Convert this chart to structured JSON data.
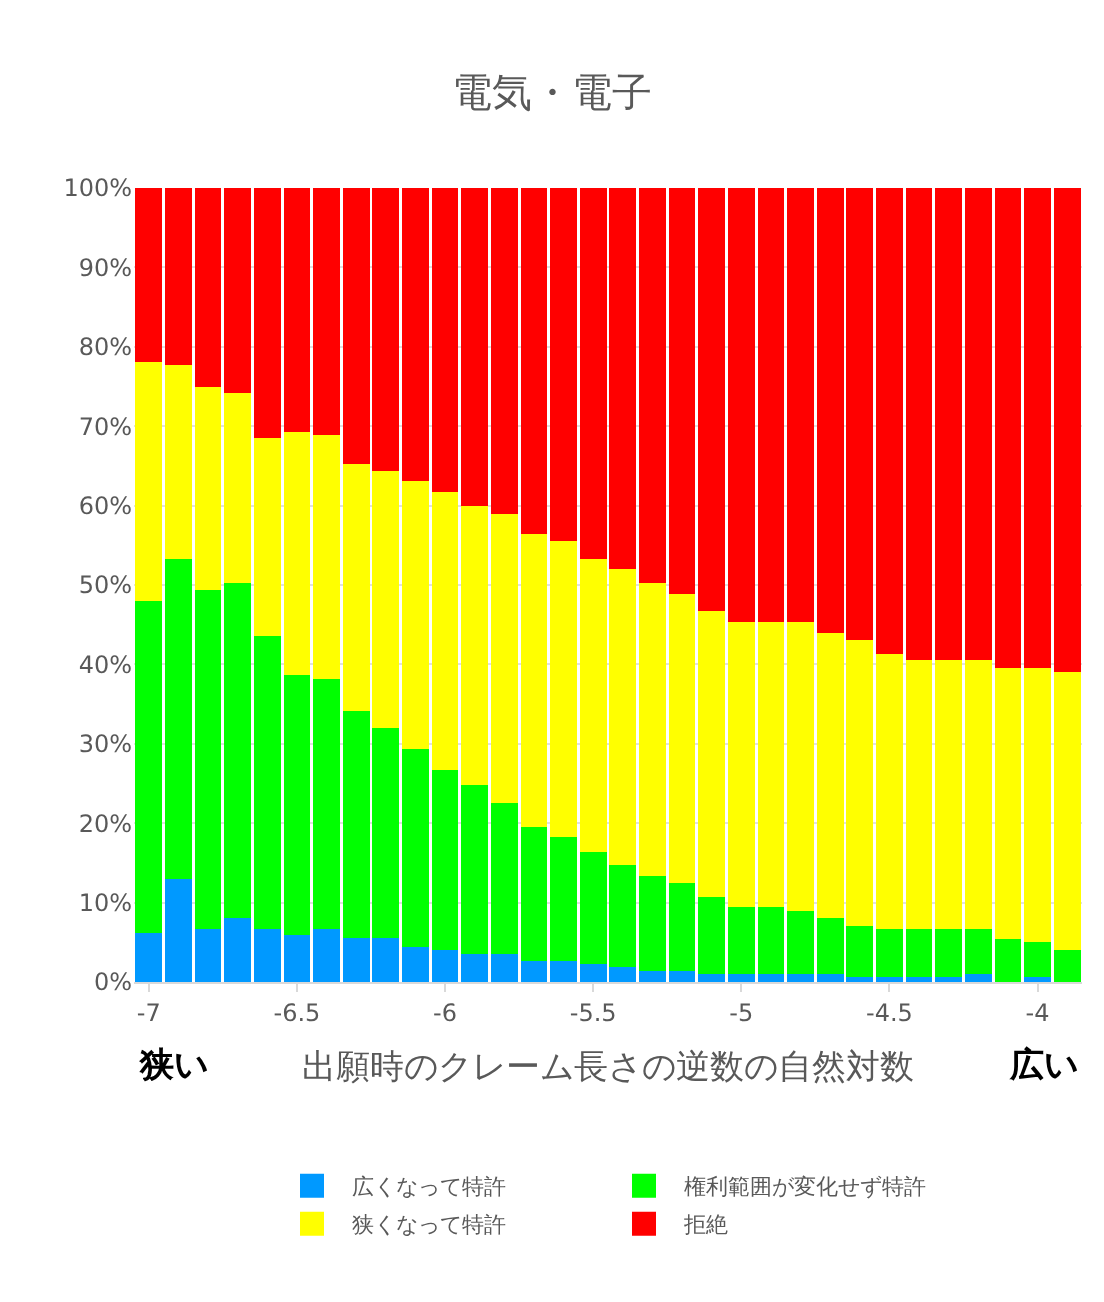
{
  "chart_data": {
    "type": "bar",
    "stacked": true,
    "title": "電気・電子",
    "xlabel": "出願時のクレーム長さの逆数の自然対数",
    "annotations": [
      "狭い",
      "広い"
    ],
    "x": [
      -7.0,
      -6.9,
      -6.8,
      -6.7,
      -6.6,
      -6.5,
      -6.4,
      -6.3,
      -6.2,
      -6.1,
      -6.0,
      -5.9,
      -5.8,
      -5.7,
      -5.6,
      -5.5,
      -5.4,
      -5.3,
      -5.2,
      -5.1,
      -5.0,
      -4.9,
      -4.8,
      -4.7,
      -4.6,
      -4.5,
      -4.4,
      -4.3,
      -4.2,
      -4.1,
      -4.0,
      -3.9
    ],
    "series": [
      {
        "name": "広くなって特許",
        "color": "#0099ff",
        "values": [
          6.2,
          13,
          6.7,
          8,
          6.7,
          5.9,
          6.7,
          5.5,
          5.5,
          4.4,
          4,
          3.5,
          3.5,
          2.7,
          2.7,
          2.3,
          1.9,
          1.4,
          1.4,
          1,
          1,
          1,
          1,
          1,
          0.6,
          0.6,
          0.6,
          0.6,
          1,
          0,
          0.6,
          0
        ]
      },
      {
        "name": "権利範囲が変化せず特許",
        "color": "#00ff00",
        "values": [
          41.8,
          40.3,
          42.7,
          42.2,
          36.9,
          32.8,
          31.5,
          28.6,
          26.5,
          24.9,
          22.7,
          21.3,
          19.1,
          16.8,
          15.6,
          14.1,
          12.8,
          12,
          11.1,
          9.7,
          8.4,
          8.4,
          7.9,
          7,
          6.5,
          6.1,
          6.1,
          6.1,
          5.7,
          5.4,
          4.4,
          4
        ]
      },
      {
        "name": "狭くなって特許",
        "color": "#ffff00",
        "values": [
          30.1,
          24.4,
          25.6,
          24,
          24.9,
          30.6,
          30.7,
          31.2,
          32.4,
          33.8,
          35,
          35.1,
          36.4,
          36.9,
          37.2,
          36.9,
          37.3,
          36.8,
          36.4,
          36,
          35.9,
          35.9,
          36.4,
          36,
          36,
          34.6,
          33.8,
          33.8,
          33.8,
          34.1,
          34.5,
          35.1
        ]
      },
      {
        "name": "拒絶",
        "color": "#ff0000",
        "values": [
          21.9,
          22.3,
          25,
          25.8,
          31.5,
          30.7,
          31.1,
          34.7,
          35.6,
          36.9,
          38.3,
          40.1,
          41,
          43.6,
          44.5,
          46.7,
          48,
          49.8,
          51.1,
          53.3,
          54.7,
          54.7,
          54.7,
          56,
          56.9,
          58.7,
          59.5,
          59.5,
          59.5,
          60.5,
          60.5,
          60.9
        ]
      }
    ],
    "xlim": [
      -7.05,
      -3.85
    ],
    "xticks": [
      -7,
      -6.5,
      -6,
      -5.5,
      -5,
      -4.5,
      -4
    ],
    "ylim": [
      0,
      100
    ],
    "yticks": [
      {
        "value": 0,
        "label": "0%"
      },
      {
        "value": 10,
        "label": "10%"
      },
      {
        "value": 20,
        "label": "20%"
      },
      {
        "value": 30,
        "label": "30%"
      },
      {
        "value": 40,
        "label": "40%"
      },
      {
        "value": 50,
        "label": "50%"
      },
      {
        "value": 60,
        "label": "60%"
      },
      {
        "value": 70,
        "label": "70%"
      },
      {
        "value": 80,
        "label": "80%"
      },
      {
        "value": 90,
        "label": "90%"
      },
      {
        "value": 100,
        "label": "100%"
      }
    ],
    "grid": "y",
    "legend": "bottom"
  }
}
